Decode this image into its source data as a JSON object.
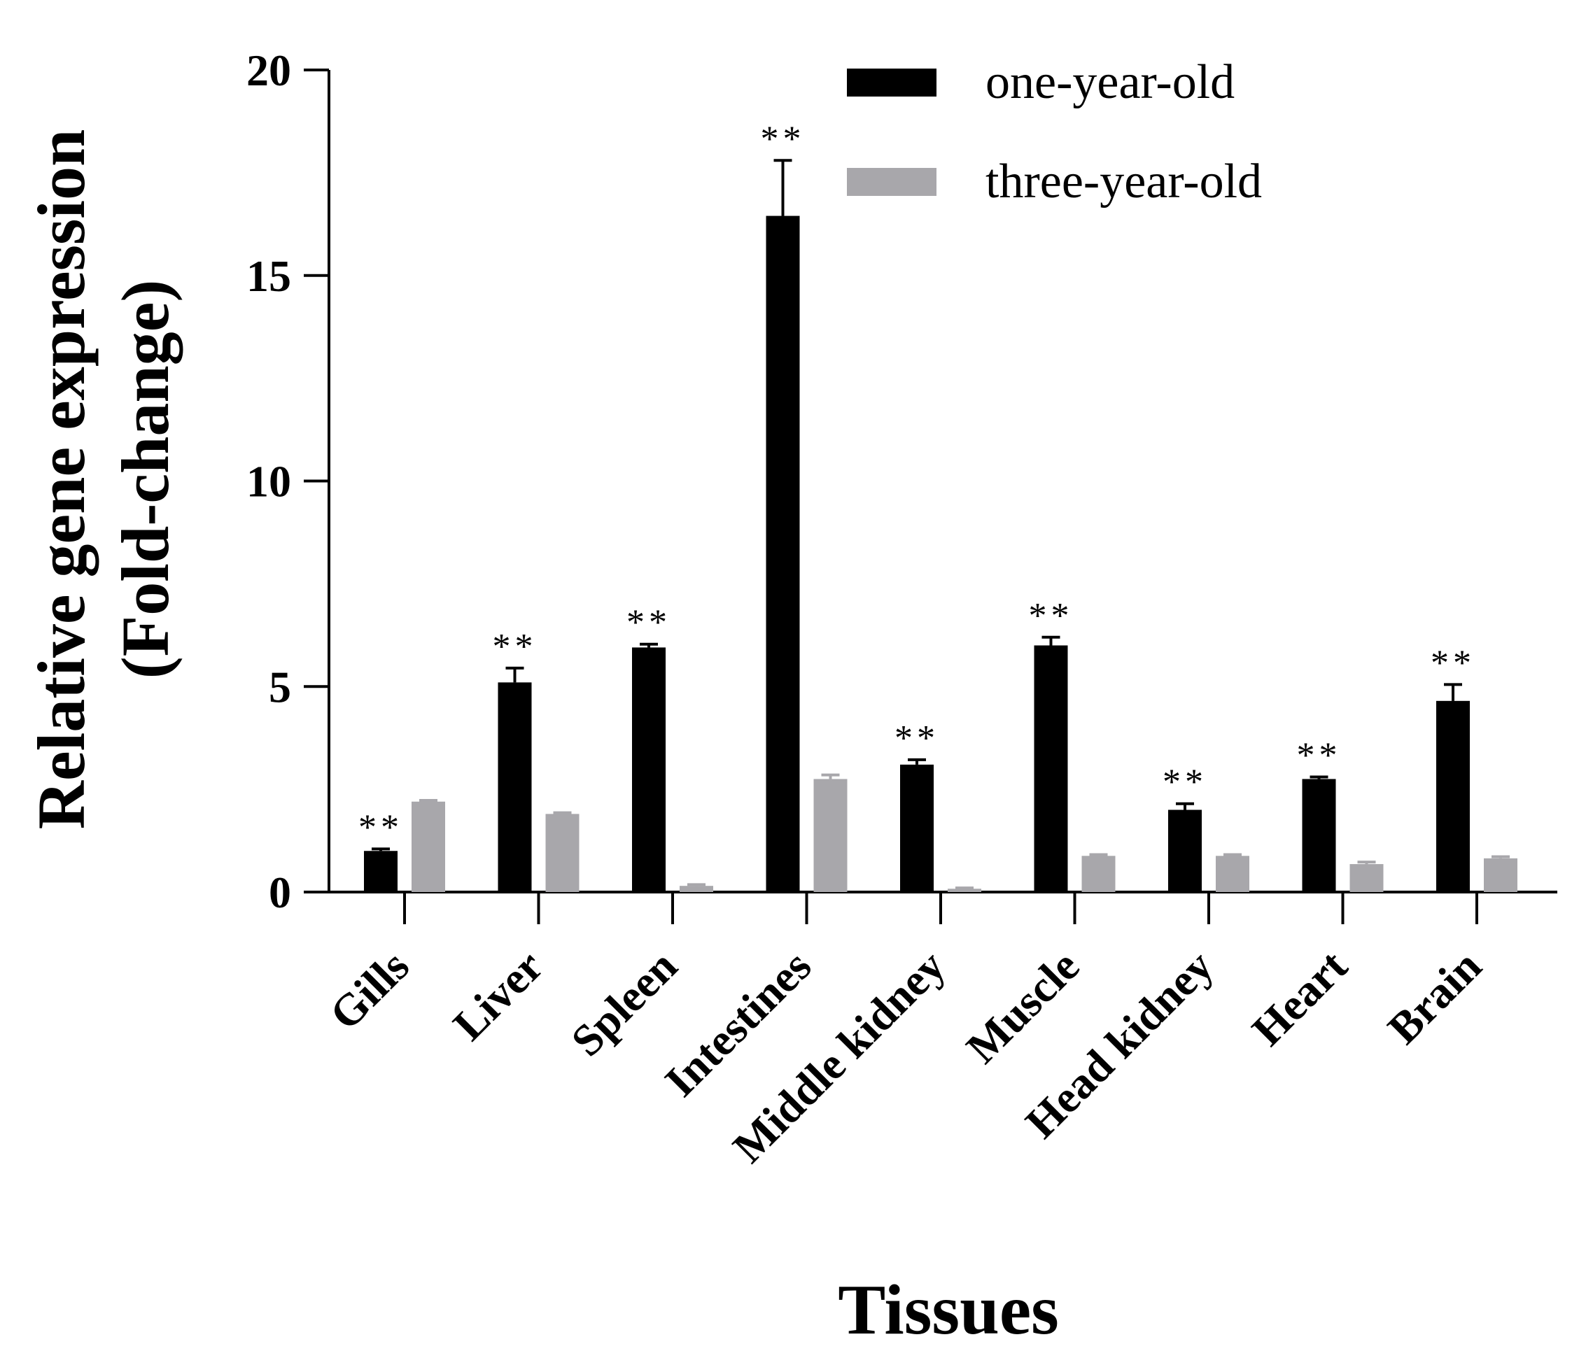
{
  "chart_data": {
    "type": "bar",
    "title": "",
    "xlabel": "Tissues",
    "ylabel_lines": [
      "Relative gene expression",
      "(Fold-change)"
    ],
    "ylim": [
      0,
      20
    ],
    "yticks": [
      0,
      5,
      10,
      15,
      20
    ],
    "ytick_labels": [
      "0",
      "5",
      "10",
      "15",
      "20"
    ],
    "grid": false,
    "legend_position": "top-right",
    "categories": [
      "Gills",
      "Liver",
      "Spleen",
      "Intestines",
      "Middle kidney",
      "Muscle",
      "Head kidney",
      "Heart",
      "Brain"
    ],
    "series": [
      {
        "name": "one-year-old",
        "color": "#000000",
        "values": [
          1.0,
          5.1,
          5.95,
          16.45,
          3.1,
          6.0,
          2.0,
          2.75,
          4.65
        ],
        "errors": [
          0.05,
          0.35,
          0.08,
          1.35,
          0.12,
          0.2,
          0.15,
          0.05,
          0.4
        ],
        "annotations": [
          "**",
          "**",
          "**",
          "**",
          "**",
          "**",
          "**",
          "**",
          "**"
        ]
      },
      {
        "name": "three-year-old",
        "color": "#a8a7ab",
        "values": [
          2.2,
          1.9,
          0.15,
          2.75,
          0.08,
          0.88,
          0.88,
          0.68,
          0.82
        ],
        "errors": [
          0.03,
          0.03,
          0.03,
          0.1,
          0.02,
          0.03,
          0.03,
          0.05,
          0.04
        ],
        "annotations": [
          "",
          "",
          "",
          "",
          "",
          "",
          "",
          "",
          ""
        ]
      }
    ]
  }
}
